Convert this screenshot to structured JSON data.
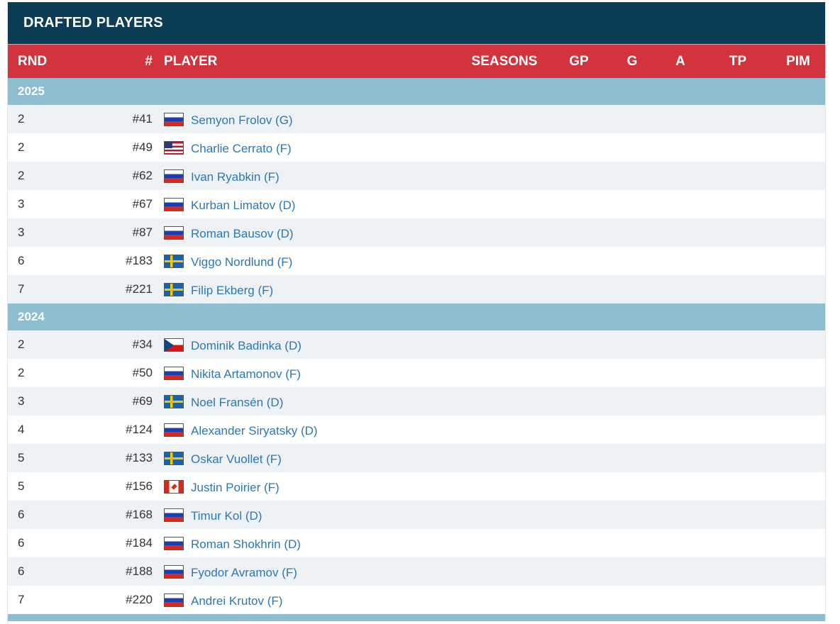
{
  "panel": {
    "title": "DRAFTED PLAYERS"
  },
  "columns": {
    "rnd": "RND",
    "num": "#",
    "player": "PLAYER",
    "seasons": "SEASONS",
    "gp": "GP",
    "g": "G",
    "a": "A",
    "tp": "TP",
    "pim": "PIM"
  },
  "groups": [
    {
      "year": "2025",
      "rows": [
        {
          "rnd": "2",
          "num": "#41",
          "flag": "ru",
          "name": "Semyon Frolov (G)"
        },
        {
          "rnd": "2",
          "num": "#49",
          "flag": "us",
          "name": "Charlie Cerrato (F)"
        },
        {
          "rnd": "2",
          "num": "#62",
          "flag": "ru",
          "name": "Ivan Ryabkin (F)"
        },
        {
          "rnd": "3",
          "num": "#67",
          "flag": "ru",
          "name": "Kurban Limatov (D)"
        },
        {
          "rnd": "3",
          "num": "#87",
          "flag": "ru",
          "name": "Roman Bausov (D)"
        },
        {
          "rnd": "6",
          "num": "#183",
          "flag": "se",
          "name": "Viggo Nordlund (F)"
        },
        {
          "rnd": "7",
          "num": "#221",
          "flag": "se",
          "name": "Filip Ekberg (F)"
        }
      ]
    },
    {
      "year": "2024",
      "rows": [
        {
          "rnd": "2",
          "num": "#34",
          "flag": "cz",
          "name": "Dominik Badinka (D)"
        },
        {
          "rnd": "2",
          "num": "#50",
          "flag": "ru",
          "name": "Nikita Artamonov (F)"
        },
        {
          "rnd": "3",
          "num": "#69",
          "flag": "se",
          "name": "Noel Fransén (D)"
        },
        {
          "rnd": "4",
          "num": "#124",
          "flag": "ru",
          "name": "Alexander Siryatsky (D)"
        },
        {
          "rnd": "5",
          "num": "#133",
          "flag": "se",
          "name": "Oskar Vuollet (F)"
        },
        {
          "rnd": "5",
          "num": "#156",
          "flag": "ca",
          "name": "Justin Poirier (F)"
        },
        {
          "rnd": "6",
          "num": "#168",
          "flag": "ru",
          "name": "Timur Kol (D)"
        },
        {
          "rnd": "6",
          "num": "#184",
          "flag": "ru",
          "name": "Roman Shokhrin (D)"
        },
        {
          "rnd": "6",
          "num": "#188",
          "flag": "ru",
          "name": "Fyodor Avramov (F)"
        },
        {
          "rnd": "7",
          "num": "#220",
          "flag": "ru",
          "name": "Andrei Krutov (F)"
        }
      ]
    }
  ],
  "colors": {
    "header_bg": "#0c3d57",
    "column_header_bg": "#d2333d",
    "year_row_bg": "#8dbdd1",
    "link": "#2f77b0",
    "alt_row_bg": "#eef2f5"
  }
}
